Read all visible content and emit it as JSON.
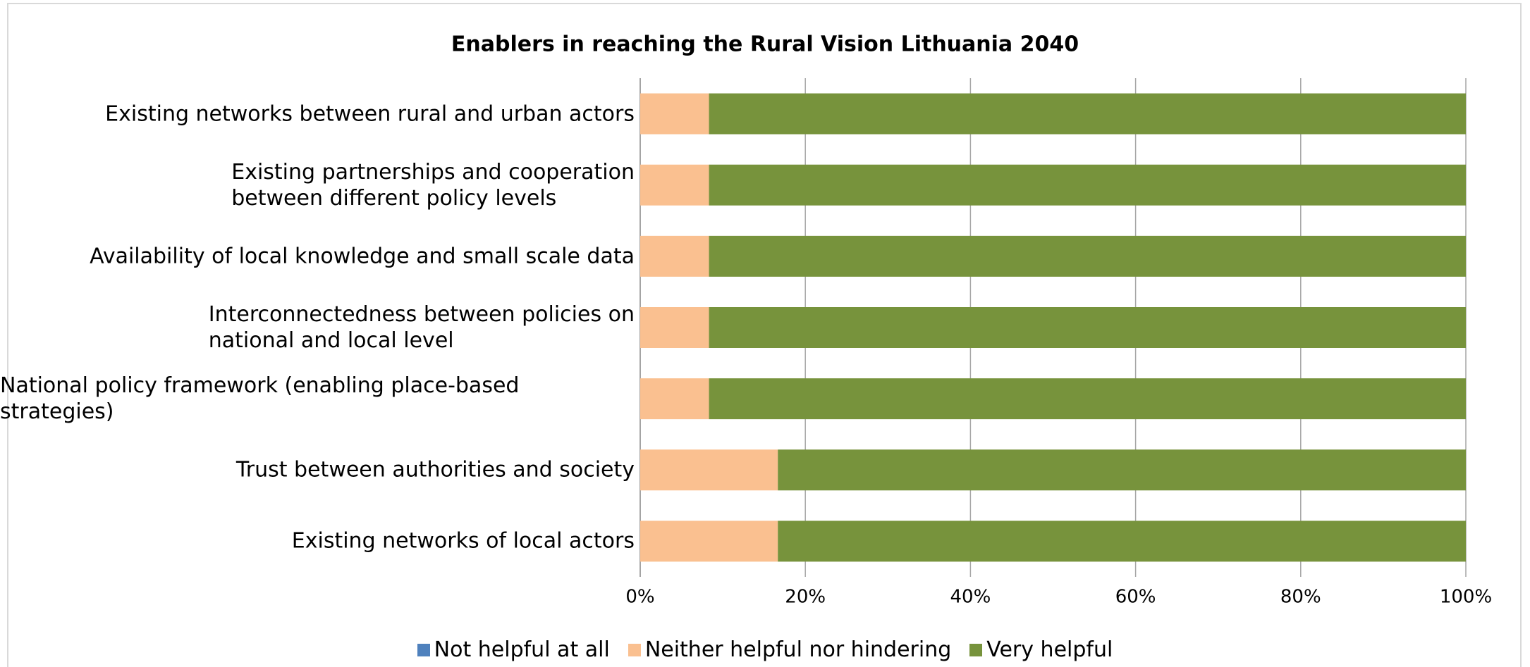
{
  "chart_data": {
    "type": "stacked_barh",
    "title": "Enablers  in reaching the Rural Vision Lithuania 2040",
    "categories": [
      "Existing networks between rural and urban actors",
      "Existing partnerships and cooperation\nbetween different policy levels",
      "Availability of local knowledge and small scale data",
      "Interconnectedness between policies on\nnational and local level",
      "National policy framework (enabling place-based strategies)",
      "Trust between authorities and society",
      "Existing networks of local actors"
    ],
    "series": [
      {
        "name": "Not helpful at all",
        "color": "#4f81bd",
        "values": [
          0,
          0,
          0,
          0,
          0,
          0,
          0
        ]
      },
      {
        "name": "Neither helpful nor hindering",
        "color": "#fac090",
        "values": [
          8.33,
          8.33,
          8.33,
          8.33,
          8.33,
          16.67,
          16.67
        ]
      },
      {
        "name": "Very helpful",
        "color": "#77933c",
        "values": [
          91.67,
          91.67,
          91.67,
          91.67,
          91.67,
          83.33,
          83.33
        ]
      }
    ],
    "xlim": [
      0,
      100
    ],
    "xticks": [
      {
        "value": 0,
        "label": "0%"
      },
      {
        "value": 20,
        "label": "20%"
      },
      {
        "value": 40,
        "label": "40%"
      },
      {
        "value": 60,
        "label": "60%"
      },
      {
        "value": 80,
        "label": "80%"
      },
      {
        "value": 100,
        "label": "100%"
      }
    ],
    "grid": true,
    "legend": "bottom"
  }
}
